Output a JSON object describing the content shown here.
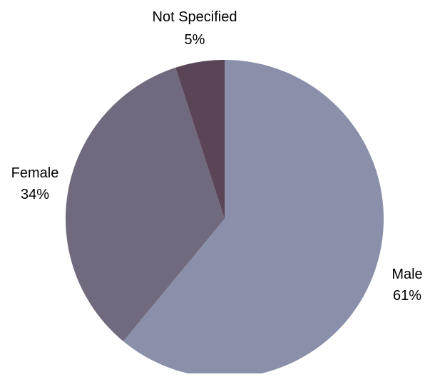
{
  "chart_data": {
    "type": "pie",
    "title": "",
    "slices": [
      {
        "label": "Male",
        "value_label": "61%",
        "value": 61,
        "color": "#8A90AA"
      },
      {
        "label": "Female",
        "value_label": "34%",
        "value": 34,
        "color": "#716A7E"
      },
      {
        "label": "Not Specified",
        "value_label": "5%",
        "value": 5,
        "color": "#5A4557"
      }
    ],
    "start_angle_deg": 0,
    "direction": "clockwise",
    "legend": "none",
    "labels": "outside"
  }
}
